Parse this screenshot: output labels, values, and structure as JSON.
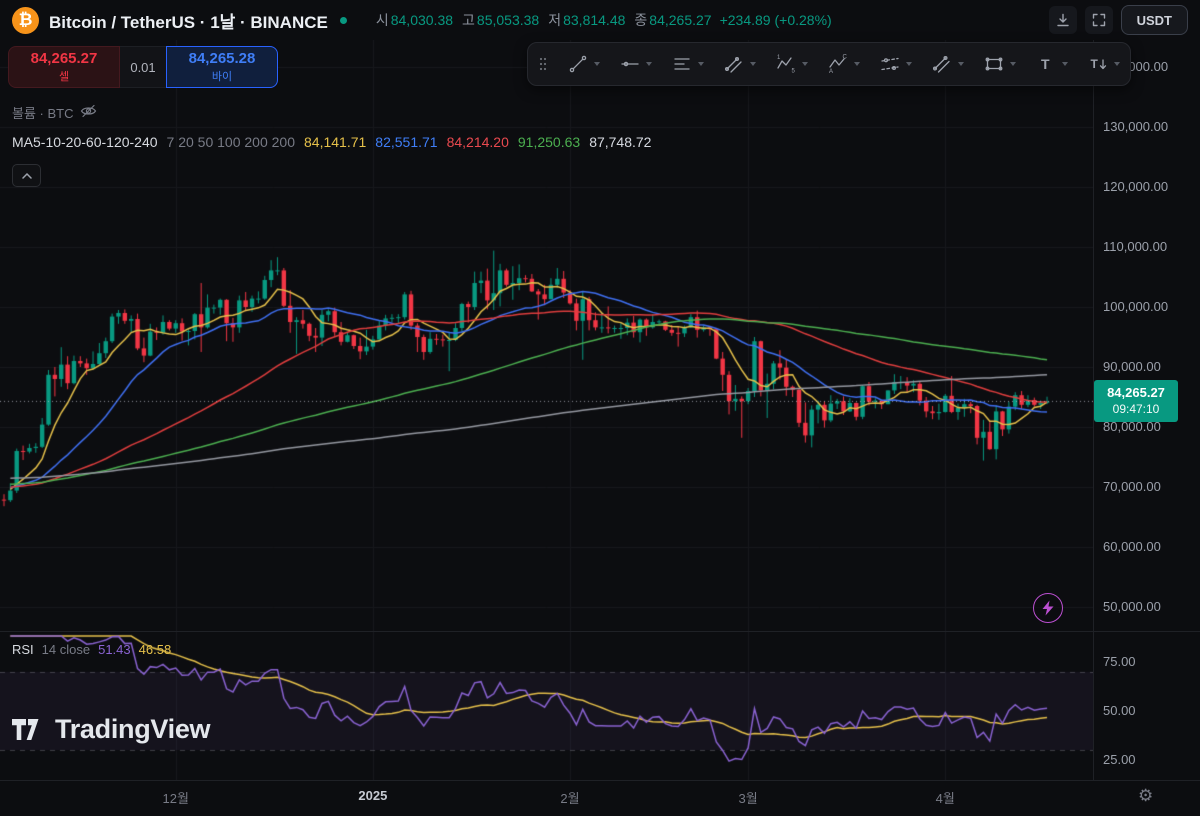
{
  "header": {
    "symbol_title": "Bitcoin / TetherUS · 1날 · BINANCE",
    "ohlc": [
      {
        "label": "시",
        "value": "84,030.38"
      },
      {
        "label": "고",
        "value": "85,053.38"
      },
      {
        "label": "저",
        "value": "83,814.48"
      },
      {
        "label": "종",
        "value": "84,265.27"
      }
    ],
    "change": "+234.89 (+0.28%)",
    "currency_button": "USDT"
  },
  "trade": {
    "sell_price": "84,265.27",
    "sell_label": "셀",
    "spread": "0.01",
    "buy_price": "84,265.28",
    "buy_label": "바이"
  },
  "legend": {
    "volume_label": "볼륨 · BTC",
    "ma_title": "MA5-10-20-60-120-240",
    "ma_params": "7 20 50 100 200 200",
    "ma_values": [
      "84,141.71",
      "82,551.71",
      "84,214.20",
      "91,250.63",
      "87,748.72"
    ],
    "ma_value_colors": [
      "#e5c04a",
      "#3f7ef7",
      "#e8494f",
      "#4caf50",
      "#d6d9e0"
    ]
  },
  "rsi_legend": {
    "title": "RSI",
    "params": "14 close",
    "value": "51.43",
    "signal": "46.58"
  },
  "price_scale": {
    "ticks": [
      {
        "label": "140,000.00",
        "value": 140000
      },
      {
        "label": "130,000.00",
        "value": 130000
      },
      {
        "label": "120,000.00",
        "value": 120000
      },
      {
        "label": "110,000.00",
        "value": 110000
      },
      {
        "label": "100,000.00",
        "value": 100000
      },
      {
        "label": "90,000.00",
        "value": 90000
      },
      {
        "label": "80,000.00",
        "value": 80000
      },
      {
        "label": "70,000.00",
        "value": 70000
      },
      {
        "label": "60,000.00",
        "value": 60000
      },
      {
        "label": "50,000.00",
        "value": 50000
      }
    ],
    "tag": {
      "price": "84,265.27",
      "countdown": "09:47:10"
    }
  },
  "rsi_scale": {
    "ticks": [
      {
        "label": "75.00",
        "value": 75
      },
      {
        "label": "50.00",
        "value": 50
      },
      {
        "label": "25.00",
        "value": 25
      }
    ]
  },
  "toolbar": {
    "tools": [
      "drag-handle",
      "trend-line",
      "horizontal-ray",
      "fib-retracement",
      "trend-based-fib",
      "elliott-impulse-wave",
      "elliott-correction-wave",
      "disjoint-channel",
      "parallel-channel",
      "rectangle",
      "text",
      "anchored-text"
    ]
  },
  "watermark": {
    "text": "TradingView"
  },
  "colors": {
    "up": "#089981",
    "down": "#f23645",
    "price_tag": "#089981",
    "sell": "#f23645",
    "buy": "#3f7ef7",
    "bolt": "#bb4fd1",
    "grid": "#17181c"
  },
  "chart_data": {
    "type": "candlestick",
    "title": "Bitcoin / TetherUS · 1날 · BINANCE",
    "interval": "1날",
    "quote_unit": "USDT",
    "last_price": 84265.27,
    "y_axis": {
      "min": 50000,
      "max": 140000,
      "tick_step": 10000
    },
    "x_ticks": [
      {
        "label": "12월",
        "index": 27
      },
      {
        "label": "2025",
        "index": 58,
        "strong": true
      },
      {
        "label": "2월",
        "index": 89
      },
      {
        "label": "3월",
        "index": 117
      },
      {
        "label": "4월",
        "index": 148
      }
    ],
    "candles_format": [
      "open",
      "high",
      "low",
      "close"
    ],
    "candles": [
      [
        67900,
        68800,
        66800,
        67800
      ],
      [
        67800,
        70600,
        67500,
        69400
      ],
      [
        69400,
        76400,
        69000,
        76000
      ],
      [
        76000,
        76900,
        74500,
        75900
      ],
      [
        75900,
        77200,
        75600,
        76500
      ],
      [
        76500,
        77300,
        75700,
        76700
      ],
      [
        76700,
        81500,
        76500,
        80400
      ],
      [
        80400,
        89500,
        80200,
        88700
      ],
      [
        88700,
        90000,
        85100,
        88000
      ],
      [
        88000,
        93300,
        86700,
        90400
      ],
      [
        90400,
        91800,
        86300,
        87300
      ],
      [
        87300,
        91900,
        87100,
        91000
      ],
      [
        91000,
        91800,
        90000,
        90600
      ],
      [
        90600,
        91400,
        88700,
        89800
      ],
      [
        89800,
        92600,
        89600,
        90500
      ],
      [
        90500,
        94000,
        90400,
        92300
      ],
      [
        92300,
        94900,
        91500,
        94300
      ],
      [
        94300,
        98900,
        94000,
        98400
      ],
      [
        98400,
        99500,
        97200,
        99000
      ],
      [
        99000,
        99600,
        97200,
        97700
      ],
      [
        97700,
        98600,
        95800,
        98000
      ],
      [
        98000,
        98900,
        92800,
        93100
      ],
      [
        93100,
        94900,
        90800,
        91900
      ],
      [
        91900,
        97200,
        91800,
        95900
      ],
      [
        95900,
        96600,
        94500,
        95700
      ],
      [
        95700,
        98600,
        95400,
        97500
      ],
      [
        97500,
        97800,
        96100,
        96400
      ],
      [
        96400,
        97800,
        95700,
        97300
      ],
      [
        97300,
        98100,
        94400,
        95900
      ],
      [
        95900,
        96300,
        93600,
        96000
      ],
      [
        96000,
        99000,
        94600,
        98800
      ],
      [
        98800,
        104000,
        92500,
        96600
      ],
      [
        96600,
        102100,
        96400,
        99900
      ],
      [
        99900,
        100400,
        98900,
        99900
      ],
      [
        99900,
        101400,
        98700,
        101200
      ],
      [
        101200,
        101300,
        94300,
        97300
      ],
      [
        97300,
        98200,
        94200,
        96600
      ],
      [
        96600,
        101900,
        95700,
        101100
      ],
      [
        101100,
        102500,
        99300,
        100000
      ],
      [
        100000,
        101900,
        99200,
        101400
      ],
      [
        101400,
        102600,
        100600,
        101400
      ],
      [
        101400,
        105200,
        101200,
        104500
      ],
      [
        104500,
        107800,
        103300,
        106100
      ],
      [
        106100,
        108300,
        105300,
        106100
      ],
      [
        106100,
        106500,
        100000,
        100200
      ],
      [
        100200,
        102800,
        95700,
        97500
      ],
      [
        97500,
        98300,
        92200,
        97800
      ],
      [
        97800,
        99500,
        96400,
        97200
      ],
      [
        97200,
        97400,
        94300,
        95200
      ],
      [
        95200,
        96500,
        92500,
        94900
      ],
      [
        94900,
        99500,
        93500,
        98700
      ],
      [
        98700,
        99600,
        97600,
        99300
      ],
      [
        99300,
        99900,
        95200,
        95800
      ],
      [
        95800,
        97500,
        93600,
        94200
      ],
      [
        94200,
        95700,
        94100,
        95300
      ],
      [
        95300,
        95400,
        93000,
        93500
      ],
      [
        93500,
        94900,
        91300,
        92600
      ],
      [
        92600,
        96200,
        92000,
        93400
      ],
      [
        93400,
        95200,
        92900,
        94600
      ],
      [
        94600,
        97800,
        94300,
        96900
      ],
      [
        96900,
        98700,
        96100,
        98100
      ],
      [
        98100,
        98800,
        97500,
        98200
      ],
      [
        98200,
        98800,
        97300,
        98300
      ],
      [
        98300,
        102500,
        97900,
        102100
      ],
      [
        102100,
        102700,
        96200,
        96900
      ],
      [
        96900,
        97300,
        92500,
        95000
      ],
      [
        95000,
        95400,
        91200,
        92500
      ],
      [
        92500,
        95800,
        92200,
        94700
      ],
      [
        94700,
        95500,
        93700,
        94600
      ],
      [
        94600,
        95400,
        93400,
        94500
      ],
      [
        94500,
        95900,
        89300,
        94500
      ],
      [
        94500,
        97300,
        94300,
        96500
      ],
      [
        96500,
        100700,
        95800,
        100500
      ],
      [
        100500,
        100900,
        97400,
        100000
      ],
      [
        100000,
        105900,
        99500,
        104000
      ],
      [
        104000,
        105900,
        102300,
        104400
      ],
      [
        104400,
        106400,
        99600,
        101100
      ],
      [
        101100,
        109400,
        99500,
        102300
      ],
      [
        102300,
        107200,
        100100,
        106100
      ],
      [
        106100,
        106400,
        103400,
        103700
      ],
      [
        103700,
        106800,
        101200,
        104000
      ],
      [
        104000,
        107100,
        102800,
        104800
      ],
      [
        104800,
        105300,
        104100,
        104700
      ],
      [
        104700,
        105500,
        102500,
        102600
      ],
      [
        102600,
        103000,
        97900,
        102100
      ],
      [
        102100,
        103700,
        100300,
        101300
      ],
      [
        101300,
        104800,
        101300,
        103700
      ],
      [
        103700,
        106500,
        103200,
        104700
      ],
      [
        104700,
        106000,
        101500,
        102400
      ],
      [
        102400,
        102800,
        100400,
        100600
      ],
      [
        100600,
        101400,
        96100,
        97700
      ],
      [
        97700,
        102500,
        91200,
        101300
      ],
      [
        101300,
        101700,
        96100,
        97800
      ],
      [
        97800,
        99100,
        96100,
        96600
      ],
      [
        96600,
        99100,
        95700,
        96600
      ],
      [
        96600,
        100100,
        95600,
        96500
      ],
      [
        96500,
        96900,
        95700,
        96500
      ],
      [
        96500,
        97300,
        94700,
        96500
      ],
      [
        96500,
        98100,
        95300,
        97400
      ],
      [
        97400,
        98500,
        94900,
        95800
      ],
      [
        95800,
        98100,
        94100,
        97900
      ],
      [
        97900,
        98100,
        95200,
        96600
      ],
      [
        96600,
        98800,
        96400,
        97500
      ],
      [
        97500,
        97900,
        97200,
        97600
      ],
      [
        97600,
        97700,
        96000,
        96200
      ],
      [
        96200,
        97000,
        95200,
        95700
      ],
      [
        95700,
        96700,
        93400,
        95600
      ],
      [
        95600,
        96900,
        95000,
        96600
      ],
      [
        96600,
        98800,
        96500,
        98300
      ],
      [
        98300,
        99400,
        94900,
        96200
      ],
      [
        96200,
        96900,
        95900,
        96600
      ],
      [
        96600,
        96700,
        95200,
        96300
      ],
      [
        96300,
        96500,
        91300,
        91400
      ],
      [
        91400,
        92500,
        86000,
        88700
      ],
      [
        88700,
        89300,
        82100,
        84300
      ],
      [
        84300,
        87000,
        82700,
        84700
      ],
      [
        84700,
        85100,
        78200,
        84300
      ],
      [
        84300,
        86500,
        83800,
        86000
      ],
      [
        86000,
        95000,
        85000,
        94300
      ],
      [
        94300,
        94400,
        85100,
        86100
      ],
      [
        86100,
        88900,
        81500,
        87200
      ],
      [
        87200,
        91000,
        86300,
        90600
      ],
      [
        90600,
        92800,
        87900,
        89900
      ],
      [
        89900,
        91300,
        85200,
        86700
      ],
      [
        86700,
        86900,
        85000,
        86200
      ],
      [
        86200,
        86500,
        80000,
        80700
      ],
      [
        80700,
        84100,
        77400,
        78600
      ],
      [
        78600,
        83600,
        76600,
        82900
      ],
      [
        82900,
        84400,
        80600,
        83700
      ],
      [
        83700,
        84300,
        79900,
        81100
      ],
      [
        81100,
        85300,
        80800,
        83900
      ],
      [
        83900,
        84700,
        83000,
        84300
      ],
      [
        84300,
        85100,
        82000,
        82600
      ],
      [
        82600,
        84800,
        82500,
        84000
      ],
      [
        84000,
        84100,
        81100,
        81700
      ],
      [
        81700,
        87000,
        81300,
        86800
      ],
      [
        86800,
        87500,
        83600,
        84200
      ],
      [
        84200,
        84800,
        83100,
        84400
      ],
      [
        84400,
        84500,
        83000,
        83800
      ],
      [
        83800,
        86100,
        83800,
        86100
      ],
      [
        86100,
        88800,
        85500,
        87500
      ],
      [
        87500,
        88500,
        86300,
        87500
      ],
      [
        87500,
        88300,
        85800,
        86900
      ],
      [
        86900,
        87800,
        85800,
        87200
      ],
      [
        87200,
        87500,
        83600,
        84400
      ],
      [
        84400,
        85000,
        81600,
        82600
      ],
      [
        82600,
        83500,
        81300,
        82300
      ],
      [
        82300,
        83900,
        81200,
        82500
      ],
      [
        82500,
        85500,
        82400,
        85200
      ],
      [
        85200,
        88500,
        82300,
        82500
      ],
      [
        82500,
        83900,
        81200,
        83200
      ],
      [
        83200,
        84700,
        81700,
        83800
      ],
      [
        83800,
        84200,
        82300,
        83500
      ],
      [
        83500,
        83700,
        77100,
        78200
      ],
      [
        78200,
        81200,
        74400,
        79200
      ],
      [
        79200,
        80800,
        76200,
        76300
      ],
      [
        76300,
        83600,
        74600,
        82600
      ],
      [
        82600,
        82700,
        78500,
        79600
      ],
      [
        79600,
        84200,
        78900,
        83400
      ],
      [
        83400,
        85800,
        82800,
        85300
      ],
      [
        85300,
        86000,
        83000,
        83700
      ],
      [
        83700,
        85300,
        83300,
        84500
      ],
      [
        84500,
        84900,
        83400,
        83700
      ],
      [
        83700,
        84400,
        83000,
        84030.38
      ],
      [
        84030.38,
        85053.38,
        83814.48,
        84265.27
      ]
    ],
    "moving_averages": [
      {
        "name": "MA7",
        "period": 7,
        "seed": 70000,
        "color": "#e5c04a",
        "value": 84141.71
      },
      {
        "name": "MA20",
        "period": 20,
        "seed": 70000,
        "color": "#3f6ff0",
        "value": 82551.71
      },
      {
        "name": "MA50",
        "period": 50,
        "seed": 70000,
        "color": "#e03e3e",
        "value": 84214.2
      },
      {
        "name": "MA100",
        "period": 100,
        "seed": 70500,
        "color": "#4caf50",
        "value": 91250.63
      },
      {
        "name": "MA200",
        "period": 200,
        "seed": 71500,
        "color": "#9598a1",
        "value": 87748.72
      }
    ],
    "rsi": {
      "period": 14,
      "value": 51.43,
      "signal_value": 46.58,
      "bands": [
        70,
        30
      ],
      "line_color": "#8a63d2",
      "signal_color": "#e5c04a"
    },
    "volume": {
      "label": "볼륨 · BTC",
      "hidden": true
    }
  }
}
